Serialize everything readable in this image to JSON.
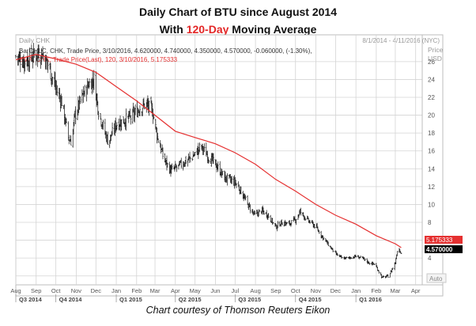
{
  "title": {
    "line1": "Daily Chart of BTU since August 2014",
    "line2_prefix": "With ",
    "line2_highlight": "120-Day",
    "line2_suffix": " Moving Average"
  },
  "caption": "Chart courtesy of Thomson Reuters Eikon",
  "panel": {
    "name": "Daily CHK",
    "date_range": "8/1/2014 - 4/11/2016 (NYC)",
    "legend_ohlc": "BarOHLC, CHK, Trade Price, 3/10/2016, 4.620000, 4.740000, 4.350000, 4.570000, -0.060000, (-1.30%),",
    "legend_sma": "SMA, CHK, Trade Price(Last), 120, 3/10/2016, 5.175333",
    "price_label": "Price",
    "currency_label": "USD",
    "auto_label": "Auto",
    "sma_tag": "5.175333",
    "price_tag": "4.570000"
  },
  "colors": {
    "bars": "#111111",
    "sma": "#e53030",
    "title_highlight": "#e32626",
    "grid": "#d4d4d4",
    "sma_tag_bg": "#e53030",
    "price_tag_bg": "#000000"
  },
  "chart_data": {
    "type": "line",
    "bar_style": "ohlc",
    "xlim": [
      "2014-08-01",
      "2016-04-11"
    ],
    "ylim": [
      1,
      29
    ],
    "y_scale": "linear",
    "grid": true,
    "y_ticks": [
      2,
      4,
      6,
      8,
      10,
      12,
      14,
      16,
      18,
      20,
      22,
      24,
      26
    ],
    "x_month_ticks": [
      {
        "label": "Aug",
        "date": "2014-08-01"
      },
      {
        "label": "Sep",
        "date": "2014-09-01"
      },
      {
        "label": "Oct",
        "date": "2014-10-01"
      },
      {
        "label": "Nov",
        "date": "2014-11-01"
      },
      {
        "label": "Dec",
        "date": "2014-12-01"
      },
      {
        "label": "Jan",
        "date": "2015-01-01"
      },
      {
        "label": "Feb",
        "date": "2015-02-01"
      },
      {
        "label": "Mar",
        "date": "2015-03-01"
      },
      {
        "label": "Apr",
        "date": "2015-04-01"
      },
      {
        "label": "May",
        "date": "2015-05-01"
      },
      {
        "label": "Jun",
        "date": "2015-06-01"
      },
      {
        "label": "Jul",
        "date": "2015-07-01"
      },
      {
        "label": "Aug",
        "date": "2015-08-01"
      },
      {
        "label": "Sep",
        "date": "2015-09-01"
      },
      {
        "label": "Oct",
        "date": "2015-10-01"
      },
      {
        "label": "Nov",
        "date": "2015-11-01"
      },
      {
        "label": "Dec",
        "date": "2015-12-01"
      },
      {
        "label": "Jan",
        "date": "2016-01-01"
      },
      {
        "label": "Feb",
        "date": "2016-02-01"
      },
      {
        "label": "Mar",
        "date": "2016-03-01"
      },
      {
        "label": "Apr",
        "date": "2016-04-01"
      }
    ],
    "x_quarter_labels": [
      {
        "label": "Q3 2014",
        "date": "2014-08-01"
      },
      {
        "label": "Q4 2014",
        "date": "2014-10-01"
      },
      {
        "label": "Q1 2015",
        "date": "2015-01-01"
      },
      {
        "label": "Q2 2015",
        "date": "2015-04-01"
      },
      {
        "label": "Q3 2015",
        "date": "2015-07-01"
      },
      {
        "label": "Q4 2015",
        "date": "2015-10-01"
      },
      {
        "label": "Q1 2016",
        "date": "2016-01-01"
      }
    ],
    "series": [
      {
        "name": "BarOHLC, CHK, Trade Price",
        "kind": "price",
        "points": [
          [
            "2014-08-01",
            26.6
          ],
          [
            "2014-08-15",
            26.0
          ],
          [
            "2014-09-01",
            26.8
          ],
          [
            "2014-09-10",
            27.0
          ],
          [
            "2014-09-20",
            25.5
          ],
          [
            "2014-10-01",
            23.0
          ],
          [
            "2014-10-10",
            21.5
          ],
          [
            "2014-10-20",
            17.5
          ],
          [
            "2014-10-25",
            17.0
          ],
          [
            "2014-10-30",
            20.0
          ],
          [
            "2014-11-10",
            22.0
          ],
          [
            "2014-11-20",
            23.5
          ],
          [
            "2014-11-28",
            24.0
          ],
          [
            "2014-12-05",
            20.5
          ],
          [
            "2014-12-15",
            18.0
          ],
          [
            "2014-12-20",
            17.0
          ],
          [
            "2015-01-01",
            19.0
          ],
          [
            "2015-01-15",
            19.5
          ],
          [
            "2015-01-25",
            19.8
          ],
          [
            "2015-02-05",
            20.8
          ],
          [
            "2015-02-15",
            21.2
          ],
          [
            "2015-02-25",
            20.5
          ],
          [
            "2015-03-05",
            17.5
          ],
          [
            "2015-03-15",
            15.0
          ],
          [
            "2015-03-25",
            13.8
          ],
          [
            "2015-04-05",
            14.2
          ],
          [
            "2015-04-15",
            14.8
          ],
          [
            "2015-04-25",
            15.2
          ],
          [
            "2015-05-05",
            16.0
          ],
          [
            "2015-05-10",
            16.5
          ],
          [
            "2015-05-20",
            15.5
          ],
          [
            "2015-06-01",
            14.5
          ],
          [
            "2015-06-15",
            13.0
          ],
          [
            "2015-07-01",
            12.5
          ],
          [
            "2015-07-10",
            11.5
          ],
          [
            "2015-07-20",
            10.0
          ],
          [
            "2015-07-31",
            8.8
          ],
          [
            "2015-08-10",
            9.3
          ],
          [
            "2015-08-20",
            8.8
          ],
          [
            "2015-09-01",
            7.5
          ],
          [
            "2015-09-10",
            8.0
          ],
          [
            "2015-09-20",
            7.8
          ],
          [
            "2015-10-01",
            8.3
          ],
          [
            "2015-10-08",
            9.2
          ],
          [
            "2015-10-20",
            8.2
          ],
          [
            "2015-11-01",
            7.5
          ],
          [
            "2015-11-10",
            6.5
          ],
          [
            "2015-11-20",
            5.5
          ],
          [
            "2015-12-01",
            4.5
          ],
          [
            "2015-12-10",
            4.0
          ],
          [
            "2015-12-20",
            4.0
          ],
          [
            "2016-01-01",
            4.2
          ],
          [
            "2016-01-10",
            4.0
          ],
          [
            "2016-01-20",
            3.5
          ],
          [
            "2016-01-30",
            3.3
          ],
          [
            "2016-02-10",
            1.8
          ],
          [
            "2016-02-20",
            2.0
          ],
          [
            "2016-03-01",
            3.5
          ],
          [
            "2016-03-05",
            5.3
          ],
          [
            "2016-03-10",
            4.57
          ]
        ]
      },
      {
        "name": "SMA, CHK, Trade Price(Last), 120",
        "kind": "sma",
        "points": [
          [
            "2014-08-01",
            26.2
          ],
          [
            "2014-09-01",
            26.8
          ],
          [
            "2014-10-01",
            26.3
          ],
          [
            "2014-11-01",
            25.7
          ],
          [
            "2014-12-01",
            24.8
          ],
          [
            "2015-01-01",
            23.2
          ],
          [
            "2015-02-01",
            21.6
          ],
          [
            "2015-03-01",
            20.0
          ],
          [
            "2015-04-01",
            18.2
          ],
          [
            "2015-05-01",
            17.5
          ],
          [
            "2015-06-01",
            16.8
          ],
          [
            "2015-07-01",
            15.8
          ],
          [
            "2015-08-01",
            14.5
          ],
          [
            "2015-09-01",
            12.8
          ],
          [
            "2015-10-01",
            11.5
          ],
          [
            "2015-11-01",
            10.0
          ],
          [
            "2015-12-01",
            8.8
          ],
          [
            "2016-01-01",
            7.8
          ],
          [
            "2016-02-01",
            6.5
          ],
          [
            "2016-03-01",
            5.6
          ],
          [
            "2016-03-10",
            5.175333
          ]
        ]
      }
    ]
  }
}
